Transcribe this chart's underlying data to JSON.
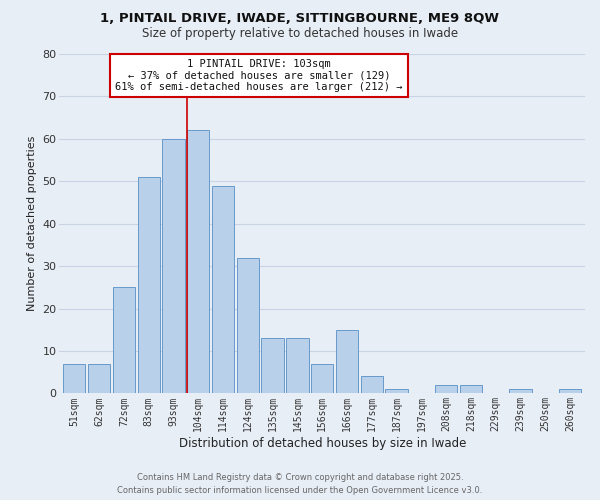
{
  "title1": "1, PINTAIL DRIVE, IWADE, SITTINGBOURNE, ME9 8QW",
  "title2": "Size of property relative to detached houses in Iwade",
  "xlabel": "Distribution of detached houses by size in Iwade",
  "ylabel": "Number of detached properties",
  "bar_labels": [
    "51sqm",
    "62sqm",
    "72sqm",
    "83sqm",
    "93sqm",
    "104sqm",
    "114sqm",
    "124sqm",
    "135sqm",
    "145sqm",
    "156sqm",
    "166sqm",
    "177sqm",
    "187sqm",
    "197sqm",
    "208sqm",
    "218sqm",
    "229sqm",
    "239sqm",
    "250sqm",
    "260sqm"
  ],
  "bar_values": [
    7,
    7,
    25,
    51,
    60,
    62,
    49,
    32,
    13,
    13,
    7,
    15,
    4,
    1,
    0,
    2,
    2,
    0,
    1,
    0,
    1
  ],
  "bar_color": "#b8d0ea",
  "bar_edge_color": "#6699cc",
  "annotation_title": "1 PINTAIL DRIVE: 103sqm",
  "annotation_line1": "← 37% of detached houses are smaller (129)",
  "annotation_line2": "61% of semi-detached houses are larger (212) →",
  "annotation_box_color": "#ffffff",
  "annotation_box_edge": "#cc0000",
  "red_line_color": "#cc0000",
  "grid_color": "#c8d4e4",
  "bg_color": "#e8eef6",
  "footer1": "Contains HM Land Registry data © Crown copyright and database right 2025.",
  "footer2": "Contains public sector information licensed under the Open Government Licence v3.0.",
  "ylim": [
    0,
    80
  ],
  "yticks": [
    0,
    10,
    20,
    30,
    40,
    50,
    60,
    70,
    80
  ]
}
